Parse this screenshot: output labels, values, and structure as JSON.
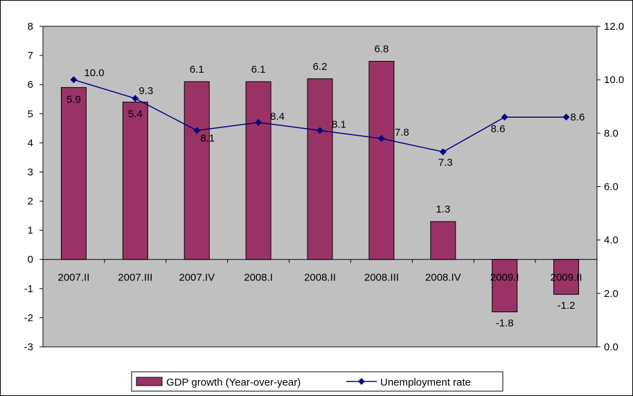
{
  "chart_data": {
    "type": "bar",
    "categories": [
      "2007.II",
      "2007.III",
      "2007.IV",
      "2008.I",
      "2008.II",
      "2008.III",
      "2008.IV",
      "2009.I",
      "2009.II"
    ],
    "series": [
      {
        "name": "GDP growth (Year-over-year)",
        "type": "bar",
        "axis": "left",
        "color": "#993366",
        "values": [
          5.9,
          5.4,
          6.1,
          6.1,
          6.2,
          6.8,
          1.3,
          -1.8,
          -1.2
        ],
        "labels": [
          "5.9",
          "5.4",
          "6.1",
          "6.1",
          "6.2",
          "6.8",
          "1.3",
          "-1.8",
          "-1.2"
        ]
      },
      {
        "name": "Unemployment rate",
        "type": "line",
        "axis": "right",
        "color": "#000080",
        "marker": "diamond",
        "values": [
          10.0,
          9.3,
          8.1,
          8.4,
          8.1,
          7.8,
          7.3,
          8.6,
          8.6
        ],
        "labels": [
          "10.0",
          "9.3",
          "8.1",
          "8.4",
          "8.1",
          "7.8",
          "7.3",
          "8.6",
          "8.6"
        ]
      }
    ],
    "y_left": {
      "min": -3,
      "max": 8,
      "ticks": [
        "8",
        "7",
        "6",
        "5",
        "4",
        "3",
        "2",
        "1",
        "0",
        "-1",
        "-2",
        "-3"
      ]
    },
    "y_right": {
      "min": 0,
      "max": 12,
      "ticks": [
        "12.0",
        "10.0",
        "8.0",
        "6.0",
        "4.0",
        "2.0",
        "0.0"
      ]
    },
    "title": "",
    "xlabel": "",
    "ylabel": "",
    "grid": false,
    "plot_background": "#c0c0c0",
    "legend_position": "bottom"
  }
}
